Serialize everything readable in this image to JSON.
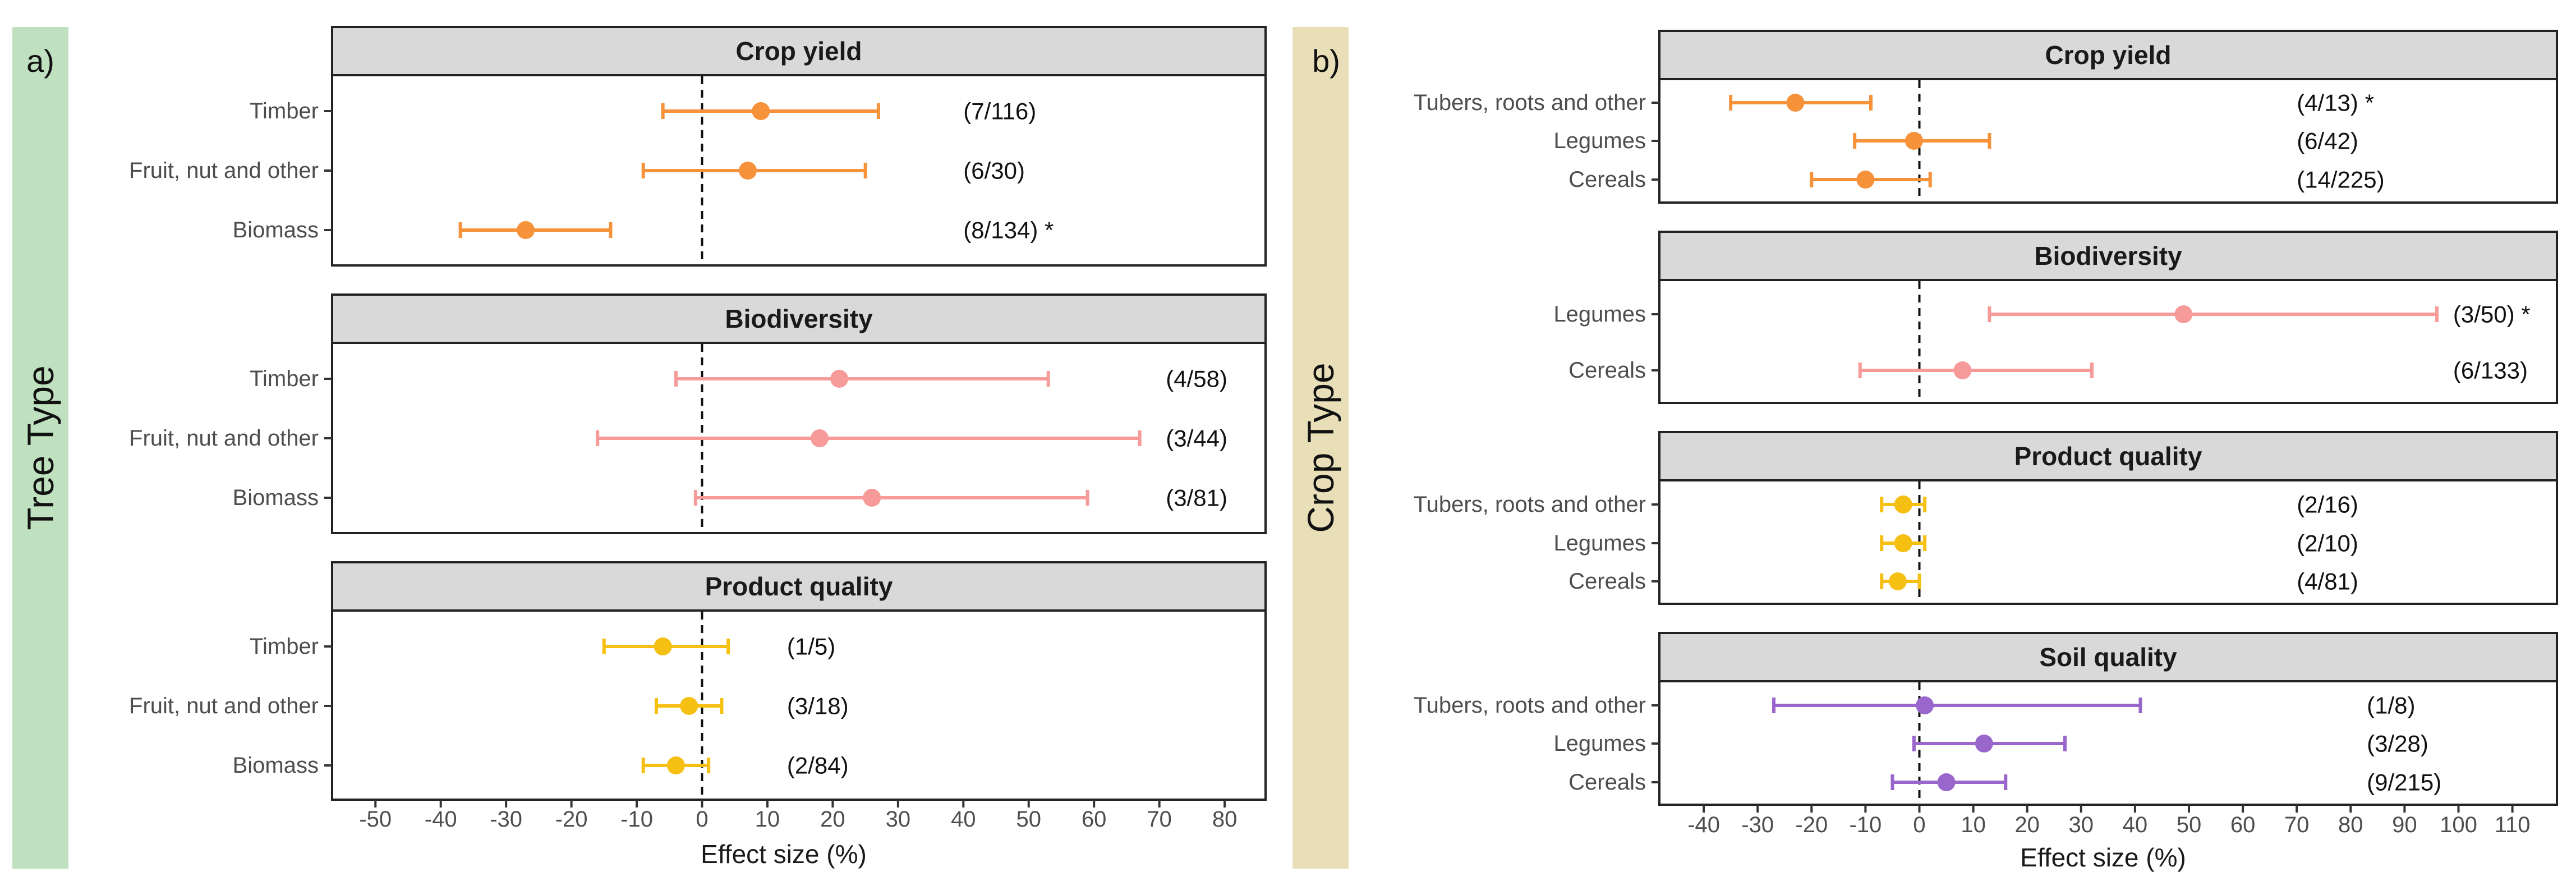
{
  "chart_data": [
    {
      "type": "forest",
      "panel_label": "a)",
      "group_label": "Tree Type",
      "xlabel": "Effect size (%)",
      "xlim": [
        -55,
        86
      ],
      "xticks": [
        -50,
        -40,
        -30,
        -20,
        -10,
        0,
        10,
        20,
        30,
        40,
        50,
        60,
        70,
        80
      ],
      "reference_line": 0,
      "annotation_x": 40,
      "facets": [
        {
          "title": "Crop yield",
          "color": "#F6923A",
          "annotation_x": 40,
          "rows": [
            {
              "category": "Timber",
              "estimate": 9,
              "lower": -6,
              "upper": 27,
              "n": "(7/116)"
            },
            {
              "category": "Fruit, nut and other",
              "estimate": 7,
              "lower": -9,
              "upper": 25,
              "n": "(6/30)"
            },
            {
              "category": "Biomass",
              "estimate": -27,
              "lower": -37,
              "upper": -14,
              "n": "(8/134) *"
            }
          ]
        },
        {
          "title": "Biodiversity",
          "color": "#F79A9A",
          "annotation_x": 71,
          "rows": [
            {
              "category": "Timber",
              "estimate": 21,
              "lower": -4,
              "upper": 53,
              "n": "(4/58)"
            },
            {
              "category": "Fruit, nut and other",
              "estimate": 18,
              "lower": -16,
              "upper": 67,
              "n": "(3/44)"
            },
            {
              "category": "Biomass",
              "estimate": 26,
              "lower": -1,
              "upper": 59,
              "n": "(3/81)"
            }
          ]
        },
        {
          "title": "Product quality",
          "color": "#F6C013",
          "annotation_x": 13,
          "rows": [
            {
              "category": "Timber",
              "estimate": -6,
              "lower": -15,
              "upper": 4,
              "n": "(1/5)"
            },
            {
              "category": "Fruit, nut and other",
              "estimate": -2,
              "lower": -7,
              "upper": 3,
              "n": "(3/18)"
            },
            {
              "category": "Biomass",
              "estimate": -4,
              "lower": -9,
              "upper": 1,
              "n": "(2/84)"
            }
          ]
        }
      ]
    },
    {
      "type": "forest",
      "panel_label": "b)",
      "group_label": "Crop Type",
      "xlabel": "Effect size (%)",
      "xlim": [
        -48,
        118
      ],
      "xticks": [
        -40,
        -30,
        -20,
        -10,
        0,
        10,
        20,
        30,
        40,
        50,
        60,
        70,
        80,
        90,
        100,
        110
      ],
      "reference_line": 0,
      "facets": [
        {
          "title": "Crop yield",
          "color": "#F6923A",
          "annotation_x": 70,
          "rows": [
            {
              "category": "Tubers, roots and other",
              "estimate": -23,
              "lower": -35,
              "upper": -9,
              "n": "(4/13)  *"
            },
            {
              "category": "Legumes",
              "estimate": -1,
              "lower": -12,
              "upper": 13,
              "n": "(6/42)"
            },
            {
              "category": "Cereals",
              "estimate": -10,
              "lower": -20,
              "upper": 2,
              "n": "(14/225)"
            }
          ]
        },
        {
          "title": "Biodiversity",
          "color": "#F79A9A",
          "annotation_x": 99,
          "rows": [
            {
              "category": "Legumes",
              "estimate": 49,
              "lower": 13,
              "upper": 96,
              "n": "(3/50) *"
            },
            {
              "category": "Cereals",
              "estimate": 8,
              "lower": -11,
              "upper": 32,
              "n": "(6/133)"
            }
          ]
        },
        {
          "title": "Product quality",
          "color": "#F6C013",
          "annotation_x": 70,
          "rows": [
            {
              "category": "Tubers, roots and other",
              "estimate": -3,
              "lower": -7,
              "upper": 1,
              "n": "(2/16)"
            },
            {
              "category": "Legumes",
              "estimate": -3,
              "lower": -7,
              "upper": 1,
              "n": "(2/10)"
            },
            {
              "category": "Cereals",
              "estimate": -4,
              "lower": -7,
              "upper": 0,
              "n": "(4/81)"
            }
          ]
        },
        {
          "title": "Soil quality",
          "color": "#9966CC",
          "annotation_x": 83,
          "rows": [
            {
              "category": "Tubers, roots and other",
              "estimate": 1,
              "lower": -27,
              "upper": 41,
              "n": "(1/8)"
            },
            {
              "category": "Legumes",
              "estimate": 12,
              "lower": -1,
              "upper": 27,
              "n": "(3/28)"
            },
            {
              "category": "Cereals",
              "estimate": 5,
              "lower": -5,
              "upper": 16,
              "n": "(9/215)"
            }
          ]
        }
      ]
    }
  ],
  "colors": {
    "group_strip_a": "#C0E1C0",
    "group_strip_b": "#E8DFB9",
    "facet_strip": "#D9D9D9",
    "panel_border": "#222222"
  }
}
